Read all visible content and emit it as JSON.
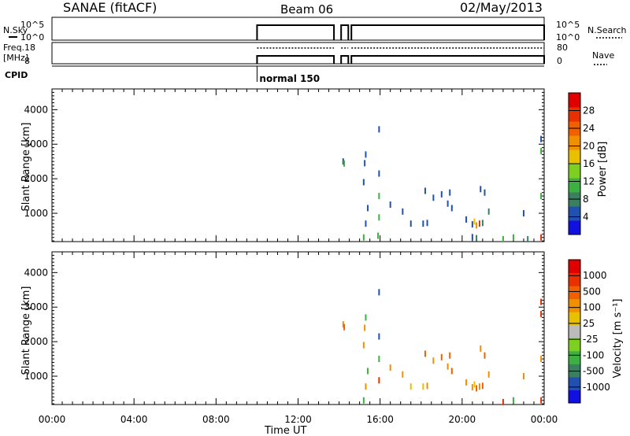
{
  "header": {
    "station": "SANAE (fitACF)",
    "beam": "Beam 06",
    "date": "02/May/2013"
  },
  "status_panels": {
    "nsky_label": "N.Sky",
    "nsky_top": "10^5",
    "nsky_bottom": "10^0",
    "nsky_right_top": "10^5",
    "nsky_right_bottom": "10^0",
    "nsearch_label": "N.Search",
    "freq_label": "Freq.",
    "freq_unit": "[MHz]",
    "freq_top": "18",
    "freq_bottom": "8",
    "nave_top": "80",
    "nave_bottom": "0",
    "nave_label": "Nave",
    "cpid_label": "CPID",
    "cpid_value": "normal 150",
    "on_intervals": [
      [
        10.0,
        13.75
      ],
      [
        14.1,
        14.45
      ],
      [
        14.6,
        24.0
      ]
    ]
  },
  "chart_data": [
    {
      "type": "scatter",
      "panel": "power",
      "xlabel": "",
      "ylabel": "Slant Range [km]",
      "ylim": [
        180,
        4600
      ],
      "xlim": [
        0,
        24
      ],
      "colorbar": {
        "label": "Power [dB]",
        "ticks": [
          "4",
          "8",
          "12",
          "16",
          "20",
          "24",
          "28"
        ],
        "colors": [
          "#1010e0",
          "#2050b0",
          "#3a8060",
          "#3cb040",
          "#7ed020",
          "#e8c000",
          "#f09000",
          "#f06000",
          "#e83000",
          "#e00000"
        ]
      },
      "points": [
        [
          14.2,
          2500,
          "#2050b0"
        ],
        [
          14.25,
          2440,
          "#3cb040"
        ],
        [
          15.3,
          2700,
          "#2050b0"
        ],
        [
          15.25,
          2450,
          "#2050b0"
        ],
        [
          15.95,
          3430,
          "#2050b0"
        ],
        [
          15.95,
          2150,
          "#2050b0"
        ],
        [
          15.2,
          1900,
          "#2050b0"
        ],
        [
          15.95,
          1500,
          "#3cb040"
        ],
        [
          15.4,
          1150,
          "#2050b0"
        ],
        [
          15.95,
          880,
          "#3cb040"
        ],
        [
          15.3,
          700,
          "#2050b0"
        ],
        [
          15.2,
          300,
          "#3cb040"
        ],
        [
          15.9,
          350,
          "#3cb040"
        ],
        [
          16.5,
          1250,
          "#2050b0"
        ],
        [
          17.1,
          1050,
          "#2050b0"
        ],
        [
          17.5,
          700,
          "#2050b0"
        ],
        [
          18.1,
          700,
          "#2050b0"
        ],
        [
          18.3,
          720,
          "#2050b0"
        ],
        [
          18.2,
          1650,
          "#2050b0"
        ],
        [
          18.6,
          1450,
          "#2050b0"
        ],
        [
          19.0,
          1550,
          "#2050b0"
        ],
        [
          19.3,
          1280,
          "#2050b0"
        ],
        [
          19.5,
          1150,
          "#2050b0"
        ],
        [
          19.4,
          1600,
          "#2050b0"
        ],
        [
          20.2,
          820,
          "#2050b0"
        ],
        [
          20.5,
          680,
          "#2050b0"
        ],
        [
          20.6,
          760,
          "#e8c000"
        ],
        [
          20.7,
          650,
          "#f09000"
        ],
        [
          20.85,
          700,
          "#e83000"
        ],
        [
          21.0,
          720,
          "#3a8060"
        ],
        [
          20.5,
          310,
          "#2050b0"
        ],
        [
          20.7,
          280,
          "#3a8060"
        ],
        [
          20.9,
          1700,
          "#2050b0"
        ],
        [
          21.1,
          1600,
          "#2050b0"
        ],
        [
          21.3,
          1050,
          "#3a8060"
        ],
        [
          22.0,
          250,
          "#3cb040"
        ],
        [
          22.5,
          300,
          "#3cb040"
        ],
        [
          23.0,
          1000,
          "#2050b0"
        ],
        [
          23.2,
          250,
          "#3a8060"
        ],
        [
          23.85,
          3150,
          "#2050b0"
        ],
        [
          23.85,
          2800,
          "#3cb040"
        ],
        [
          23.85,
          1500,
          "#3cb040"
        ],
        [
          23.85,
          300,
          "#e83000"
        ]
      ]
    },
    {
      "type": "scatter",
      "panel": "velocity",
      "xlabel": "Time UT",
      "ylabel": "Slant Range [km]",
      "ylim": [
        180,
        4600
      ],
      "xlim": [
        0,
        24
      ],
      "x_ticks": [
        "00:00",
        "04:00",
        "08:00",
        "12:00",
        "16:00",
        "20:00",
        "00:00"
      ],
      "colorbar": {
        "label": "Velocity [m s^-1]",
        "ticks": [
          "1000",
          "500",
          "100",
          "25",
          "-25",
          "-100",
          "-500",
          "-1000"
        ],
        "colors": [
          "#1010e0",
          "#2050b0",
          "#3a8060",
          "#3cb040",
          "#7ed020",
          "#bbbbbb",
          "#e8c000",
          "#f09000",
          "#f06000",
          "#e83000",
          "#e00000"
        ]
      },
      "points": [
        [
          14.2,
          2500,
          "#f09000"
        ],
        [
          14.25,
          2420,
          "#f06000"
        ],
        [
          15.3,
          2700,
          "#3cb040"
        ],
        [
          15.25,
          2400,
          "#f09000"
        ],
        [
          15.95,
          3430,
          "#2050b0"
        ],
        [
          15.95,
          2150,
          "#2050b0"
        ],
        [
          15.2,
          1900,
          "#f09000"
        ],
        [
          15.95,
          1500,
          "#3cb040"
        ],
        [
          15.4,
          1150,
          "#3cb040"
        ],
        [
          15.95,
          880,
          "#e83000"
        ],
        [
          15.3,
          700,
          "#f09000"
        ],
        [
          15.2,
          300,
          "#3cb040"
        ],
        [
          16.5,
          1250,
          "#f09000"
        ],
        [
          17.1,
          1050,
          "#f09000"
        ],
        [
          17.5,
          700,
          "#e8c000"
        ],
        [
          18.1,
          700,
          "#e8c000"
        ],
        [
          18.3,
          720,
          "#f09000"
        ],
        [
          18.2,
          1650,
          "#f06000"
        ],
        [
          18.6,
          1450,
          "#f09000"
        ],
        [
          19.0,
          1550,
          "#f06000"
        ],
        [
          19.3,
          1280,
          "#f09000"
        ],
        [
          19.5,
          1150,
          "#f06000"
        ],
        [
          19.4,
          1600,
          "#f06000"
        ],
        [
          20.2,
          820,
          "#f09000"
        ],
        [
          20.5,
          680,
          "#f09000"
        ],
        [
          20.6,
          760,
          "#e8c000"
        ],
        [
          20.7,
          650,
          "#f06000"
        ],
        [
          20.85,
          700,
          "#f09000"
        ],
        [
          21.0,
          720,
          "#f06000"
        ],
        [
          20.9,
          1800,
          "#f09000"
        ],
        [
          21.1,
          1600,
          "#f06000"
        ],
        [
          21.3,
          1050,
          "#f09000"
        ],
        [
          22.0,
          250,
          "#e83000"
        ],
        [
          22.5,
          300,
          "#3cb040"
        ],
        [
          23.0,
          1000,
          "#f09000"
        ],
        [
          23.85,
          3150,
          "#e83000"
        ],
        [
          23.85,
          2800,
          "#e83000"
        ],
        [
          23.85,
          1500,
          "#f09000"
        ],
        [
          23.85,
          300,
          "#e83000"
        ]
      ]
    }
  ]
}
